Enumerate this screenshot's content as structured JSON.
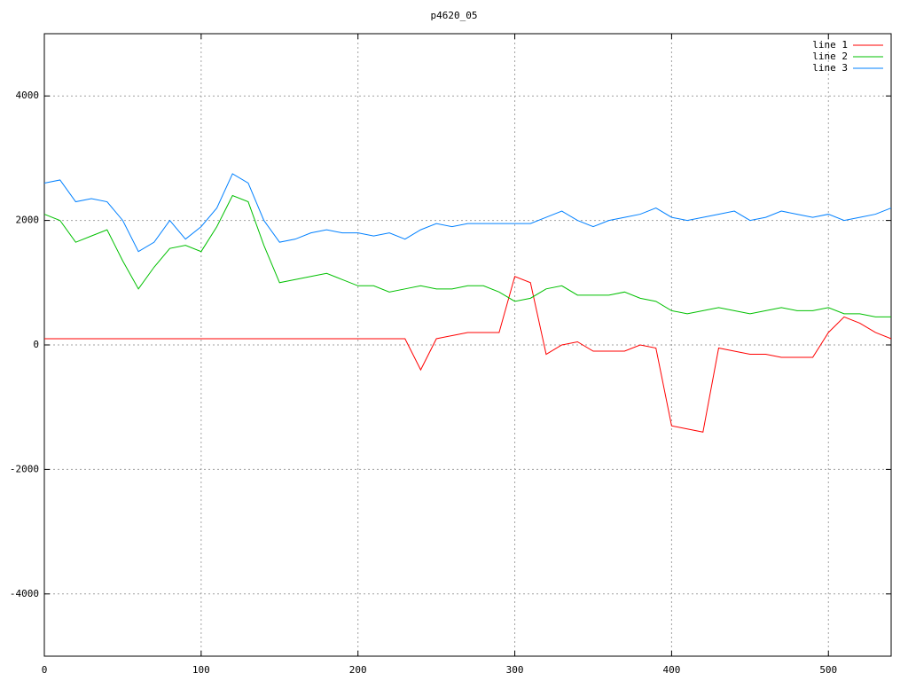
{
  "chart_data": {
    "type": "line",
    "title": "p4620_05",
    "x": [
      0,
      10,
      20,
      30,
      40,
      50,
      60,
      70,
      80,
      90,
      100,
      110,
      120,
      130,
      140,
      150,
      160,
      170,
      180,
      190,
      200,
      210,
      220,
      230,
      240,
      250,
      260,
      270,
      280,
      290,
      300,
      310,
      320,
      330,
      340,
      350,
      360,
      370,
      380,
      390,
      400,
      410,
      420,
      430,
      440,
      450,
      460,
      470,
      480,
      490,
      500,
      510,
      520,
      530,
      540
    ],
    "series": [
      {
        "name": "line 1",
        "color": "#ff0000",
        "values": [
          100,
          100,
          100,
          100,
          100,
          100,
          100,
          100,
          100,
          100,
          100,
          100,
          100,
          100,
          100,
          100,
          100,
          100,
          100,
          100,
          100,
          100,
          100,
          100,
          -400,
          100,
          150,
          200,
          200,
          200,
          1100,
          1000,
          -150,
          0,
          50,
          -100,
          -100,
          -100,
          0,
          -50,
          -1300,
          -1350,
          -1400,
          -50,
          -100,
          -150,
          -150,
          -200,
          -200,
          -200,
          200,
          450,
          350,
          200,
          100
        ]
      },
      {
        "name": "line 2",
        "color": "#00c000",
        "values": [
          2100,
          2000,
          1650,
          1750,
          1850,
          1350,
          900,
          1250,
          1550,
          1600,
          1500,
          1900,
          2400,
          2300,
          1600,
          1000,
          1050,
          1100,
          1150,
          1050,
          950,
          950,
          850,
          900,
          950,
          900,
          900,
          950,
          950,
          850,
          700,
          750,
          900,
          950,
          800,
          800,
          800,
          850,
          750,
          700,
          550,
          500,
          550,
          600,
          550,
          500,
          550,
          600,
          550,
          550,
          600,
          500,
          500,
          450,
          450
        ]
      },
      {
        "name": "line 3",
        "color": "#0080ff",
        "values": [
          2600,
          2650,
          2300,
          2350,
          2300,
          2000,
          1500,
          1650,
          2000,
          1700,
          1900,
          2200,
          2750,
          2600,
          2000,
          1650,
          1700,
          1800,
          1850,
          1800,
          1800,
          1750,
          1800,
          1700,
          1850,
          1950,
          1900,
          1950,
          1950,
          1950,
          1950,
          1950,
          2050,
          2150,
          2000,
          1900,
          2000,
          2050,
          2100,
          2200,
          2050,
          2000,
          2050,
          2100,
          2150,
          2000,
          2050,
          2150,
          2100,
          2050,
          2100,
          2000,
          2050,
          2100,
          2200
        ]
      }
    ],
    "xlim": [
      0,
      540
    ],
    "ylim": [
      -5000,
      5000
    ],
    "xticks": [
      0,
      100,
      200,
      300,
      400,
      500
    ],
    "yticks": [
      -4000,
      -2000,
      0,
      2000,
      4000
    ],
    "grid": true,
    "legend": "top-right"
  }
}
